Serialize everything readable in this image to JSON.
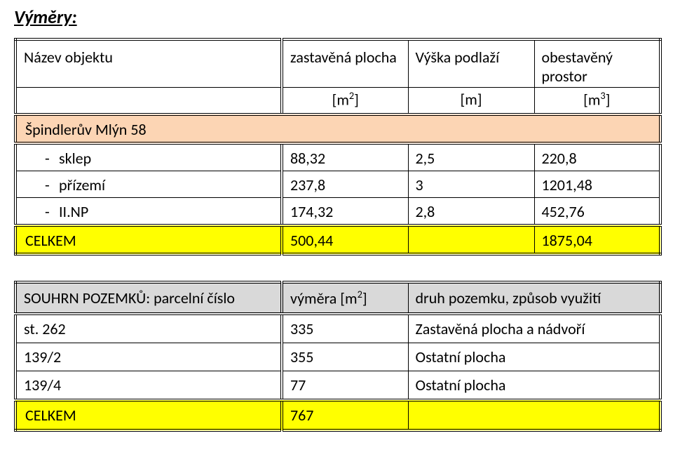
{
  "title": "Výměry:",
  "table1": {
    "headers": {
      "name": "Název objektu",
      "area": "zastavěná plocha",
      "height": "Výška podlaží",
      "volume": "obestavěný prostor"
    },
    "units": {
      "area": "[m2]",
      "height": "[m]",
      "volume": "[m3]"
    },
    "section": "Špindlerův Mlýn 58",
    "rows": [
      {
        "label": "sklep",
        "area": "88,32",
        "height": "2,5",
        "volume": "220,8"
      },
      {
        "label": "přízemí",
        "area": "237,8",
        "height": "3",
        "volume": "1201,48"
      },
      {
        "label": "II.NP",
        "area": "174,32",
        "height": "2,8",
        "volume": "452,76"
      }
    ],
    "total": {
      "label": "CELKEM",
      "area": "500,44",
      "height": "",
      "volume": "1875,04"
    }
  },
  "table2": {
    "headers": {
      "parcel": "SOUHRN POZEMKŮ: parcelní číslo",
      "area": "výměra [m2]",
      "use": "druh pozemku, způsob využití"
    },
    "rows": [
      {
        "parcel": "st. 262",
        "area": "335",
        "use": "Zastavěná plocha a nádvoří"
      },
      {
        "parcel": "139/2",
        "area": "355",
        "use": "Ostatní plocha"
      },
      {
        "parcel": "139/4",
        "area": "77",
        "use": "Ostatní plocha"
      }
    ],
    "total": {
      "label": "CELKEM",
      "area": "767",
      "use": ""
    }
  },
  "colors": {
    "section_bg": "#fcd5b4",
    "total_bg": "#ffff00",
    "header2_bg": "#d9d9d9",
    "text": "#000000",
    "page_bg": "#ffffff"
  }
}
